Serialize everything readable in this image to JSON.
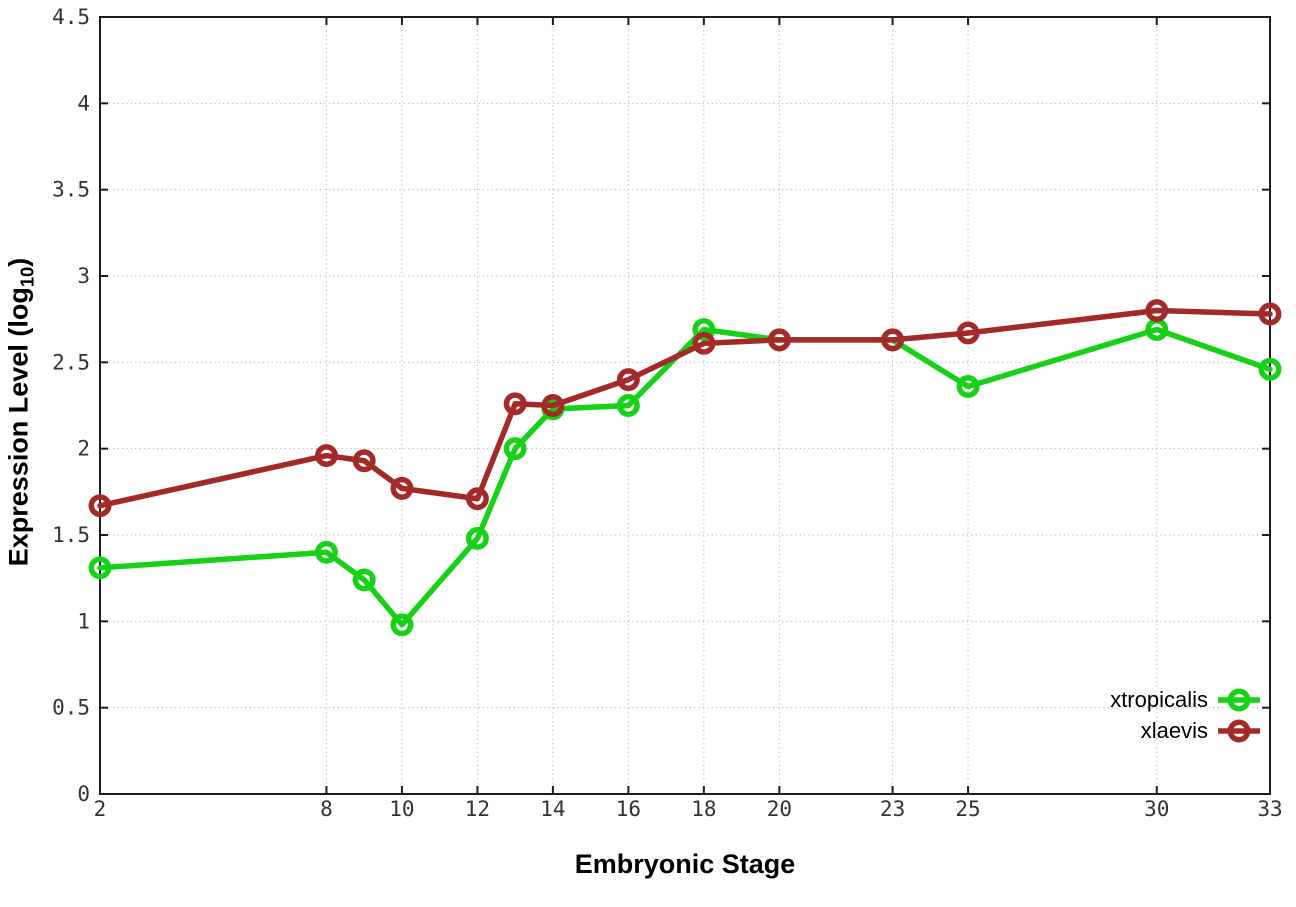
{
  "chart_data": {
    "type": "line",
    "title": "",
    "xlabel": "Embryonic Stage",
    "ylabel": "Expression Level (log10)",
    "x": [
      2,
      8,
      9,
      10,
      12,
      13,
      14,
      16,
      18,
      20,
      23,
      25,
      30,
      33
    ],
    "series": [
      {
        "name": "xtropicalis",
        "color": "#17d117",
        "values": [
          1.31,
          1.4,
          1.24,
          0.98,
          1.48,
          2.0,
          2.23,
          2.25,
          2.69,
          2.63,
          2.63,
          2.36,
          2.69,
          2.46
        ]
      },
      {
        "name": "xlaevis",
        "color": "#a42a2a",
        "values": [
          1.67,
          1.96,
          1.93,
          1.77,
          1.71,
          2.26,
          2.25,
          2.4,
          2.61,
          2.63,
          2.63,
          2.67,
          2.8,
          2.78
        ]
      }
    ],
    "xlim": [
      2,
      33
    ],
    "ylim": [
      0,
      4.5
    ],
    "xticks": [
      2,
      8,
      10,
      12,
      14,
      16,
      18,
      20,
      23,
      25,
      30,
      33
    ],
    "yticks": [
      0,
      0.5,
      1,
      1.5,
      2,
      2.5,
      3,
      3.5,
      4,
      4.5
    ],
    "ytick_labels": [
      "0",
      "0.5",
      "1",
      "1.5",
      "2",
      "2.5",
      "3",
      "3.5",
      "4",
      "4.5"
    ],
    "grid": true,
    "legend_position": "bottom-right",
    "marker": "open-circle"
  },
  "axis_titles": {
    "x": "Embryonic Stage",
    "y_prefix": "Expression Level (log",
    "y_sub": "10",
    "y_suffix": ")"
  },
  "legend": {
    "entries": [
      {
        "label": "xtropicalis",
        "color": "#17d117"
      },
      {
        "label": "xlaevis",
        "color": "#a42a2a"
      }
    ]
  },
  "colors": {
    "background": "#ffffff",
    "border": "#1c1c1c",
    "grid": "#b4b4b4",
    "tick_label": "#333333"
  }
}
